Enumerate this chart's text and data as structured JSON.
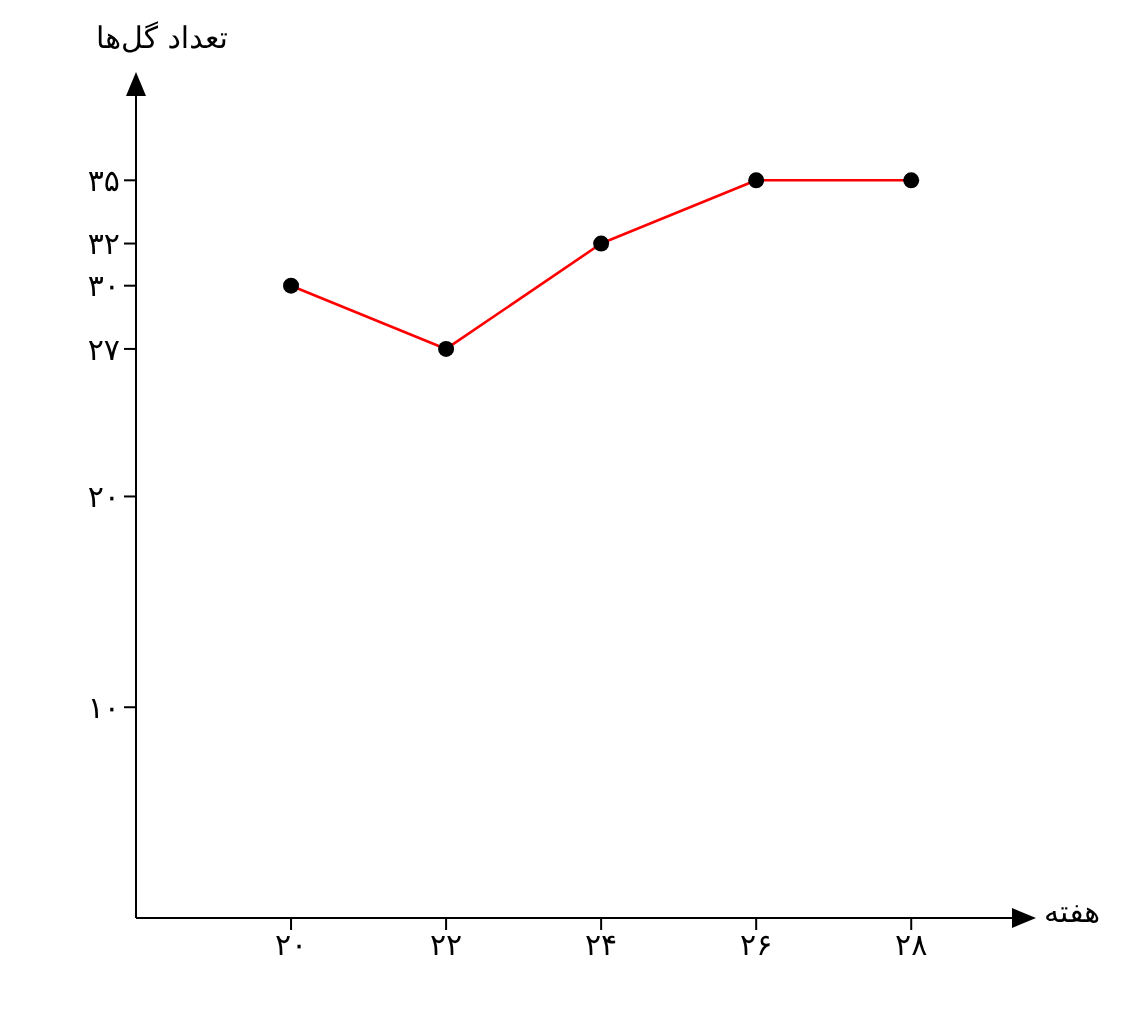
{
  "chart_data": {
    "type": "line",
    "xlabel": "هفته",
    "ylabel": "تعداد گل‌ها",
    "x": [
      20,
      22,
      24,
      26,
      28
    ],
    "series": [
      {
        "color": "#ff0000",
        "values": [
          30,
          27,
          32,
          35,
          35
        ]
      }
    ],
    "xlim": [
      18,
      29.3
    ],
    "ylim": [
      0,
      39
    ],
    "xticks": [
      {
        "value": 20,
        "label": "۲۰"
      },
      {
        "value": 22,
        "label": "۲۲"
      },
      {
        "value": 24,
        "label": "۲۴"
      },
      {
        "value": 26,
        "label": "۲۶"
      },
      {
        "value": 28,
        "label": "۲۸"
      }
    ],
    "yticks": [
      {
        "value": 10,
        "label": "۱۰"
      },
      {
        "value": 20,
        "label": "۲۰"
      },
      {
        "value": 27,
        "label": "۲۷"
      },
      {
        "value": 30,
        "label": "۳۰"
      },
      {
        "value": 32,
        "label": "۳۲"
      },
      {
        "value": 35,
        "label": "۳۵"
      }
    ],
    "grid": false,
    "legend": false,
    "marker": "circle",
    "line_style": "solid"
  }
}
